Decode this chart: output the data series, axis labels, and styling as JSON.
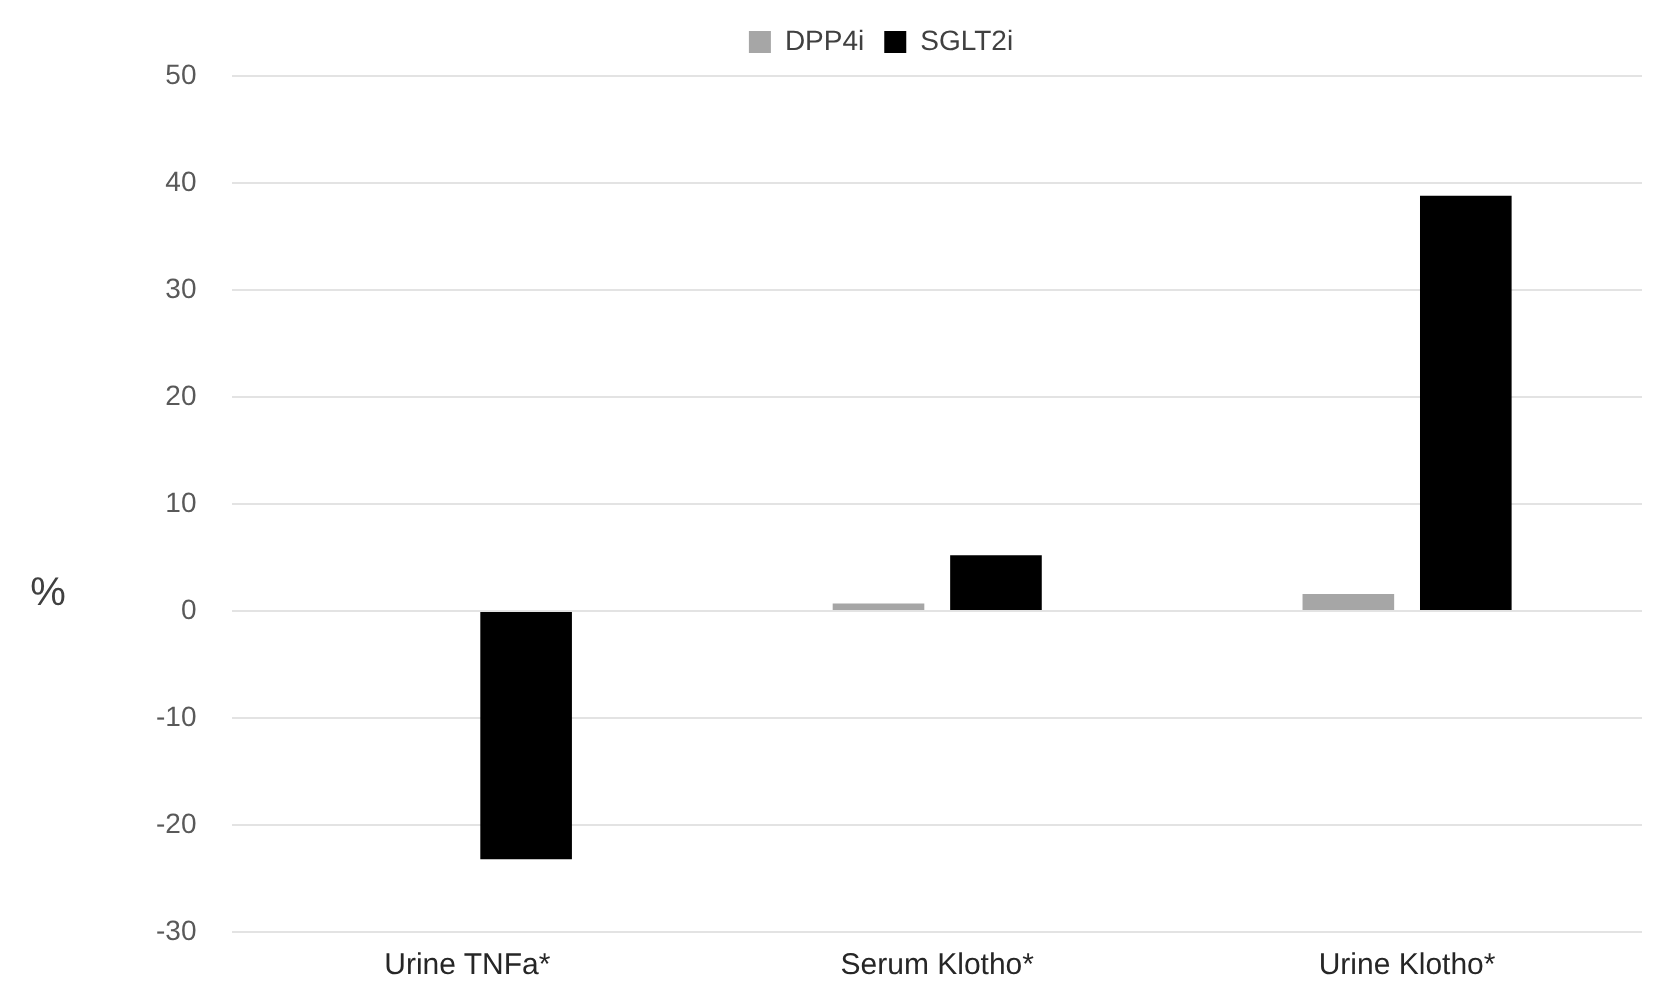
{
  "chart_data": {
    "type": "bar",
    "ylabel": "%",
    "categories": [
      "Urine TNFa*",
      "Serum Klotho*",
      "Urine Klotho*"
    ],
    "series": [
      {
        "name": "DPP4i",
        "color": "#a6a6a6",
        "values": [
          null,
          0.7,
          1.6
        ]
      },
      {
        "name": "SGLT2i",
        "color": "#000000",
        "values": [
          -23.2,
          5.2,
          38.8
        ]
      }
    ],
    "ylim": [
      -30,
      50
    ],
    "yticks": [
      -30,
      -20,
      -10,
      0,
      10,
      20,
      30,
      40,
      50
    ],
    "grid": "y",
    "legend": "top"
  }
}
